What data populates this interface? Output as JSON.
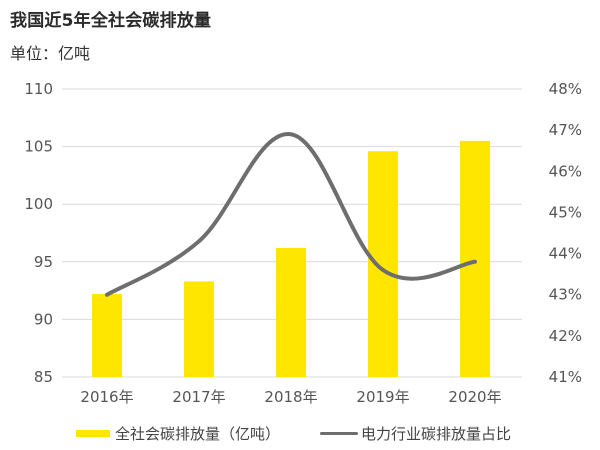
{
  "header": {
    "title": "我国近5年全社会碳排放量",
    "unit": "单位：亿吨"
  },
  "colors": {
    "bar": "#FFE600",
    "line": "#6E6E6E",
    "grid": "#D9D9D9"
  },
  "legend": {
    "bar_label": "全社会碳排放量（亿吨）",
    "line_label": "电力行业碳排放量占比"
  },
  "axes": {
    "left_ticks": [
      "110",
      "105",
      "100",
      "95",
      "90",
      "85"
    ],
    "right_ticks": [
      "48%",
      "47%",
      "46%",
      "45%",
      "44%",
      "43%",
      "42%",
      "41%"
    ],
    "x_ticks": [
      "2016年",
      "2017年",
      "2018年",
      "2019年",
      "2020年"
    ]
  },
  "chart_data": {
    "type": "bar+line",
    "title": "我国近5年全社会碳排放量",
    "subtitle": "单位：亿吨",
    "categories": [
      "2016年",
      "2017年",
      "2018年",
      "2019年",
      "2020年"
    ],
    "series": [
      {
        "name": "全社会碳排放量（亿吨）",
        "type": "bar",
        "axis": "left",
        "values": [
          92.2,
          93.3,
          96.2,
          104.6,
          105.5
        ]
      },
      {
        "name": "电力行业碳排放量占比",
        "type": "line",
        "axis": "right",
        "smooth": true,
        "values": [
          43.0,
          44.3,
          46.9,
          43.6,
          43.8
        ],
        "unit": "%"
      }
    ],
    "xlabel": "",
    "ylabel_left": "亿吨",
    "ylabel_right": "%",
    "ylim_left": [
      85,
      110
    ],
    "ylim_right": [
      41,
      48
    ],
    "left_tick_step": 5,
    "right_tick_step": 1,
    "grid": true,
    "legend_position": "bottom"
  }
}
